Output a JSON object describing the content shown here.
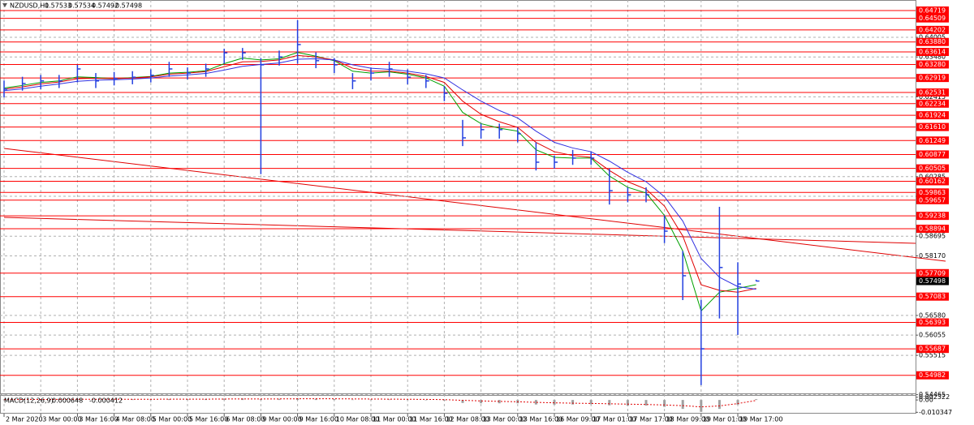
{
  "chart_data": [
    {
      "type": "ohlc",
      "title": "NZDUSD,H1",
      "open": 0.57533,
      "categories": [
        "2 Mar 2020",
        null,
        "3 Mar 00:00",
        null,
        "3 Mar 16:00",
        null,
        "4 Mar 08:00",
        null,
        "5 Mar 00:00",
        null,
        "5 Mar 16:00",
        null,
        "6 Mar 08:00",
        null,
        "9 Mar 00:00",
        null,
        "9 Mar 16:00",
        null,
        "10 Mar 08:00",
        null,
        "11 Mar 00:00",
        null,
        "11 Mar 16:00",
        null,
        "12 Mar 08:00",
        null,
        "13 Mar 00:00",
        null,
        "13 Mar 16:00",
        null,
        "16 Mar 09:00",
        null,
        "17 Mar 01:00",
        null,
        "17 Mar 17:00",
        null,
        "18 Mar 09:00",
        null,
        "19 Mar 01:00",
        null,
        "19 Mar 17:00",
        null
      ],
      "color": "#2340e0",
      "high": [
        0.6285,
        0.6295,
        0.63,
        0.63,
        0.6327,
        0.6305,
        0.6308,
        0.631,
        0.6315,
        0.6335,
        0.632,
        0.633,
        0.637,
        0.6372,
        0.6345,
        0.6365,
        0.6446,
        0.636,
        0.6345,
        0.6305,
        0.632,
        0.6335,
        0.6315,
        0.63,
        0.627,
        0.618,
        0.617,
        0.617,
        0.616,
        0.612,
        0.6085,
        0.61,
        0.6095,
        0.605,
        0.6,
        0.6,
        0.5925,
        0.583,
        0.57,
        0.5948,
        0.58,
        0.57534
      ],
      "low": [
        0.624,
        0.6258,
        0.6262,
        0.6265,
        0.628,
        0.6265,
        0.6272,
        0.6275,
        0.628,
        0.6295,
        0.6288,
        0.6295,
        0.633,
        0.634,
        0.6035,
        0.6325,
        0.633,
        0.6318,
        0.6305,
        0.6262,
        0.6285,
        0.6295,
        0.6275,
        0.6265,
        0.623,
        0.611,
        0.613,
        0.613,
        0.612,
        0.6045,
        0.605,
        0.606,
        0.606,
        0.5954,
        0.596,
        0.596,
        0.5851,
        0.5699,
        0.5472,
        0.565,
        0.5606,
        0.57492
      ],
      "close": [
        0.6262,
        0.6277,
        0.6284,
        0.6284,
        0.6316,
        0.6284,
        0.629,
        0.6294,
        0.6299,
        0.6316,
        0.6305,
        0.6316,
        0.6359,
        0.6359,
        0.6327,
        0.6348,
        0.6381,
        0.6338,
        0.6327,
        0.6284,
        0.6305,
        0.6316,
        0.6294,
        0.6284,
        0.6251,
        0.6132,
        0.6154,
        0.6154,
        0.6143,
        0.6067,
        0.6067,
        0.6078,
        0.6078,
        0.5991,
        0.598,
        0.598,
        0.5883,
        0.5764,
        0.5569,
        0.5786,
        0.5742,
        0.57498
      ],
      "moving_averages": [
        {
          "color": "#00a000",
          "values": [
            0.6265,
            0.6272,
            0.628,
            0.6284,
            0.6295,
            0.6293,
            0.629,
            0.6293,
            0.6296,
            0.6305,
            0.6307,
            0.6311,
            0.633,
            0.6345,
            0.634,
            0.6343,
            0.636,
            0.635,
            0.6338,
            0.631,
            0.6305,
            0.6308,
            0.6302,
            0.6292,
            0.627,
            0.62,
            0.617,
            0.6158,
            0.615,
            0.61,
            0.608,
            0.6078,
            0.6078,
            0.603,
            0.6,
            0.5985,
            0.5925,
            0.583,
            0.567,
            0.572,
            0.573,
            0.574
          ]
        },
        {
          "color": "#e00000",
          "values": [
            0.6262,
            0.6268,
            0.6276,
            0.6281,
            0.629,
            0.6291,
            0.629,
            0.6292,
            0.6295,
            0.6302,
            0.6305,
            0.6309,
            0.6322,
            0.6335,
            0.6336,
            0.634,
            0.6352,
            0.6348,
            0.634,
            0.6318,
            0.631,
            0.631,
            0.6305,
            0.6296,
            0.628,
            0.623,
            0.6195,
            0.6175,
            0.616,
            0.612,
            0.6095,
            0.6085,
            0.608,
            0.6045,
            0.6015,
            0.5995,
            0.595,
            0.587,
            0.574,
            0.5725,
            0.572,
            0.573
          ]
        },
        {
          "color": "#3030e0",
          "values": [
            0.6258,
            0.6263,
            0.627,
            0.6276,
            0.6283,
            0.6286,
            0.6287,
            0.6289,
            0.6292,
            0.6297,
            0.63,
            0.6304,
            0.6313,
            0.6323,
            0.6328,
            0.6332,
            0.6342,
            0.6343,
            0.634,
            0.6327,
            0.6318,
            0.6315,
            0.631,
            0.6303,
            0.6292,
            0.626,
            0.623,
            0.6205,
            0.6185,
            0.615,
            0.612,
            0.6105,
            0.6095,
            0.607,
            0.604,
            0.6015,
            0.5975,
            0.591,
            0.581,
            0.576,
            0.5735,
            0.5728
          ]
        }
      ],
      "levels_color": "#ff0000",
      "levels": [
        0.64719,
        0.64509,
        0.64202,
        {
          "value": 0.6388,
          "label": "0.63880"
        },
        0.63614,
        {
          "value": 0.6328,
          "label": "0.63280"
        },
        0.62919,
        0.62531,
        0.62234,
        0.61924,
        {
          "value": 0.6161,
          "label": "0.61610"
        },
        0.61249,
        0.60877,
        0.60505,
        0.60162,
        0.59863,
        0.59657,
        0.59238,
        0.58894,
        0.57709,
        0.57083,
        0.56393,
        0.55687,
        0.54982
      ],
      "ylim": [
        0.545,
        0.65
      ],
      "yticks": [
        0.64005,
        {
          "value": 0.6348,
          "label": "0.63480"
        },
        0.62415,
        0.60285,
        {
          "value": 0.5976,
          "label": "0.59760"
        },
        0.58695,
        {
          "value": 0.5817,
          "label": "0.58170"
        },
        {
          "value": 0.5658,
          "label": "0.56580"
        },
        0.56055,
        0.55515,
        0.54465
      ],
      "grid": true
    },
    {
      "type": "macd",
      "title": "MACD(12,26,9)",
      "series": [
        {
          "color": "#a0a0a0",
          "values": [
            0.0004,
            0.0005,
            0.0006,
            0.0006,
            0.0008,
            0.0006,
            0.0006,
            0.0006,
            0.0006,
            0.0008,
            0.0007,
            0.0008,
            0.0012,
            0.0013,
            0.0008,
            0.001,
            0.0014,
            0.001,
            0.0008,
            0.0003,
            0.0004,
            0.0005,
            0.0003,
            0.0001,
            -0.0006,
            -0.0025,
            -0.0028,
            -0.0028,
            -0.0028,
            -0.0038,
            -0.004,
            -0.0038,
            -0.0036,
            -0.0045,
            -0.0048,
            -0.0047,
            -0.0058,
            -0.0075,
            -0.01,
            -0.0075,
            -0.004,
            0.000648
          ]
        },
        {
          "color": "#e00000",
          "values": [
            0.0003,
            0.0004,
            0.0004,
            0.0005,
            0.0006,
            0.0006,
            0.0006,
            0.0006,
            0.0006,
            0.0007,
            0.0007,
            0.0007,
            0.0008,
            0.0009,
            0.0009,
            0.0009,
            0.001,
            0.001,
            0.001,
            0.0009,
            0.0008,
            0.0007,
            0.0006,
            0.0005,
            0.0003,
            -0.0003,
            -0.0008,
            -0.0012,
            -0.0015,
            -0.002,
            -0.0024,
            -0.0027,
            -0.0029,
            -0.0032,
            -0.0035,
            -0.0038,
            -0.0042,
            -0.0048,
            -0.0058,
            -0.005,
            -0.003,
            -0.000412
          ]
        }
      ],
      "ylim": [
        -0.0115,
        0.0035
      ],
      "yticks": [
        0.002322,
        {
          "value": 0,
          "label": "0.00"
        },
        -0.010347
      ]
    }
  ]
}
